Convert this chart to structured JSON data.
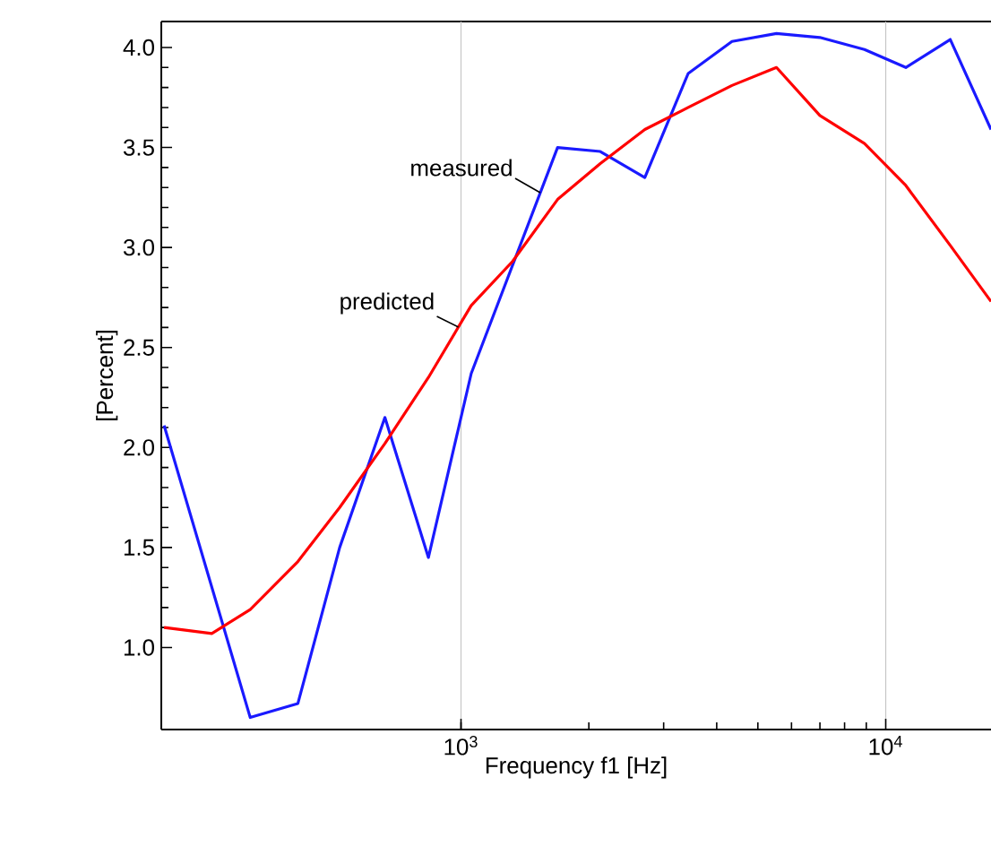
{
  "chart_data": {
    "type": "line",
    "xlabel": "Frequency f1  [Hz]",
    "ylabel": "[Percent]",
    "log": "x",
    "grid": "x",
    "marker": "none",
    "line_style": "solid",
    "legend": false,
    "xlim": [
      197,
      17700
    ],
    "ylim": [
      0.59,
      4.13
    ],
    "xticks": [
      {
        "value": 1000,
        "label": "10$^{3}$"
      },
      {
        "value": 10000,
        "label": "10$^{4}$"
      }
    ],
    "yticks": [
      {
        "value": 1.0,
        "label": "1.0"
      },
      {
        "value": 1.5,
        "label": "1.5"
      },
      {
        "value": 2.0,
        "label": "2.0"
      },
      {
        "value": 2.5,
        "label": "2.5"
      },
      {
        "value": 3.0,
        "label": "3.0"
      },
      {
        "value": 3.5,
        "label": "3.5"
      },
      {
        "value": 4.0,
        "label": "4.0"
      }
    ],
    "series": [
      {
        "name": "measured",
        "color": "#1a1aff",
        "x": [
          200,
          319,
          413,
          518,
          662,
          838,
          1057,
          1688,
          2128,
          2709,
          3427,
          4345,
          5531,
          6998,
          8913,
          11150,
          14190,
          17700
        ],
        "values": [
          2.11,
          0.65,
          0.72,
          1.5,
          2.15,
          1.45,
          2.37,
          3.5,
          3.48,
          3.35,
          3.87,
          4.03,
          4.07,
          4.05,
          3.99,
          3.9,
          4.04,
          3.59
        ]
      },
      {
        "name": "predicted",
        "color": "#ff0000",
        "x": [
          200,
          259,
          319,
          413,
          518,
          662,
          838,
          1057,
          1322,
          1688,
          2128,
          2709,
          3427,
          4345,
          5531,
          6998,
          8913,
          11150,
          14190,
          17700
        ],
        "values": [
          1.1,
          1.07,
          1.19,
          1.43,
          1.7,
          2.02,
          2.35,
          2.71,
          2.93,
          3.24,
          3.42,
          3.59,
          3.7,
          3.81,
          3.9,
          3.66,
          3.52,
          3.31,
          3.01,
          2.73
        ]
      }
    ]
  }
}
